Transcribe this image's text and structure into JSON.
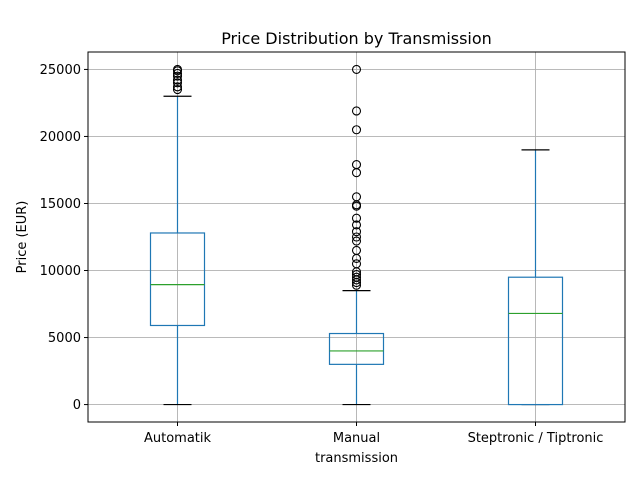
{
  "chart_data": {
    "type": "box",
    "title": "Price Distribution by Transmission",
    "xlabel": "transmission",
    "ylabel": "Price (EUR)",
    "categories": [
      "Automatik",
      "Manual",
      "Steptronic / Tiptronic"
    ],
    "ylim": [
      -1300,
      26300
    ],
    "yticks": [
      0,
      5000,
      10000,
      15000,
      20000,
      25000
    ],
    "grid": true,
    "colors": {
      "box": "#1f77b4",
      "median": "#2ca02c",
      "cap": "#000000",
      "flier": "#000000",
      "grid": "#b0b0b0"
    },
    "boxes": [
      {
        "category": "Automatik",
        "whisker_low": 0,
        "q1": 5900,
        "median": 8950,
        "q3": 12800,
        "whisker_high": 23000,
        "outliers": [
          23500,
          23700,
          24000,
          24200,
          24500,
          24700,
          24900,
          25000
        ]
      },
      {
        "category": "Manual",
        "whisker_low": 0,
        "q1": 3000,
        "median": 4000,
        "q3": 5300,
        "whisker_high": 8500,
        "outliers": [
          8900,
          9100,
          9300,
          9500,
          9700,
          9900,
          10500,
          10900,
          11500,
          12200,
          12500,
          12900,
          13400,
          13900,
          14800,
          14900,
          15500,
          17300,
          17900,
          20500,
          21900,
          25000
        ]
      },
      {
        "category": "Steptronic / Tiptronic",
        "whisker_low": 0,
        "q1": 0,
        "median": 6800,
        "q3": 9500,
        "whisker_high": 19000,
        "outliers": []
      }
    ]
  }
}
